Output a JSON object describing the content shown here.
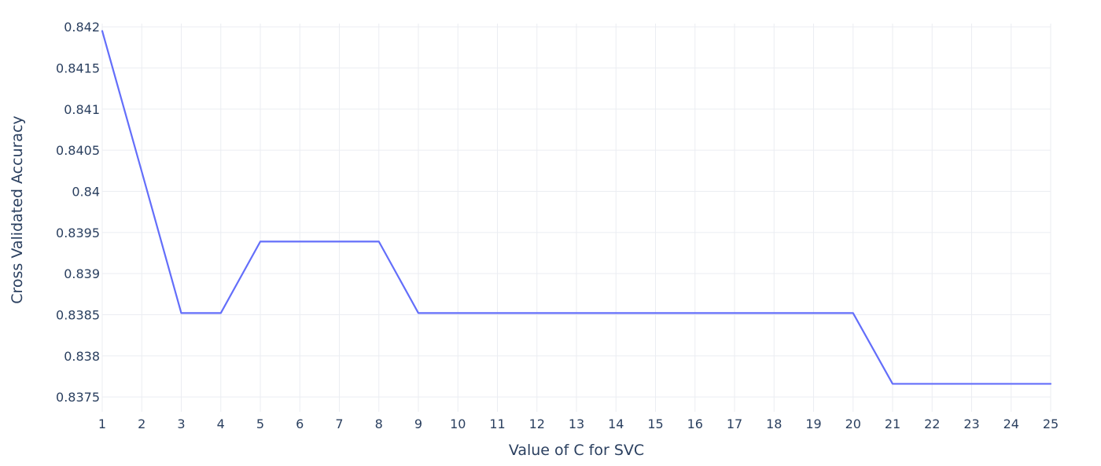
{
  "chart_data": {
    "type": "line",
    "title": "",
    "xlabel": "Value of C for SVC",
    "ylabel": "Cross Validated Accuracy",
    "x": [
      1,
      2,
      3,
      4,
      5,
      6,
      7,
      8,
      9,
      10,
      11,
      12,
      13,
      14,
      15,
      16,
      17,
      18,
      19,
      20,
      21,
      22,
      23,
      24,
      25
    ],
    "series": [
      {
        "values": [
          0.84195,
          0.84024,
          0.83852,
          0.83852,
          0.83939,
          0.83939,
          0.83939,
          0.83939,
          0.83852,
          0.83852,
          0.83852,
          0.83852,
          0.83852,
          0.83852,
          0.83852,
          0.83852,
          0.83852,
          0.83852,
          0.83852,
          0.83852,
          0.83766,
          0.83766,
          0.83766,
          0.83766,
          0.83766
        ],
        "color": "#636efa"
      }
    ],
    "xlim": [
      1,
      25
    ],
    "ylim": [
      0.83732,
      0.84204
    ],
    "x_ticks": [
      "1",
      "2",
      "3",
      "4",
      "5",
      "6",
      "7",
      "8",
      "9",
      "10",
      "11",
      "12",
      "13",
      "14",
      "15",
      "16",
      "17",
      "18",
      "19",
      "20",
      "21",
      "22",
      "23",
      "24",
      "25"
    ],
    "y_ticks": [
      0.8375,
      0.838,
      0.8385,
      0.839,
      0.8395,
      0.84,
      0.8405,
      0.841,
      0.8415,
      0.842
    ],
    "y_tick_labels": [
      "0.8375",
      "0.838",
      "0.8385",
      "0.839",
      "0.8395",
      "0.84",
      "0.8405",
      "0.841",
      "0.8415",
      "0.842"
    ],
    "grid": true,
    "legend": false
  },
  "colors": {
    "line": "#636efa",
    "grid": "#ebedf2",
    "text": "#2a3f5f",
    "background": "#ffffff"
  }
}
